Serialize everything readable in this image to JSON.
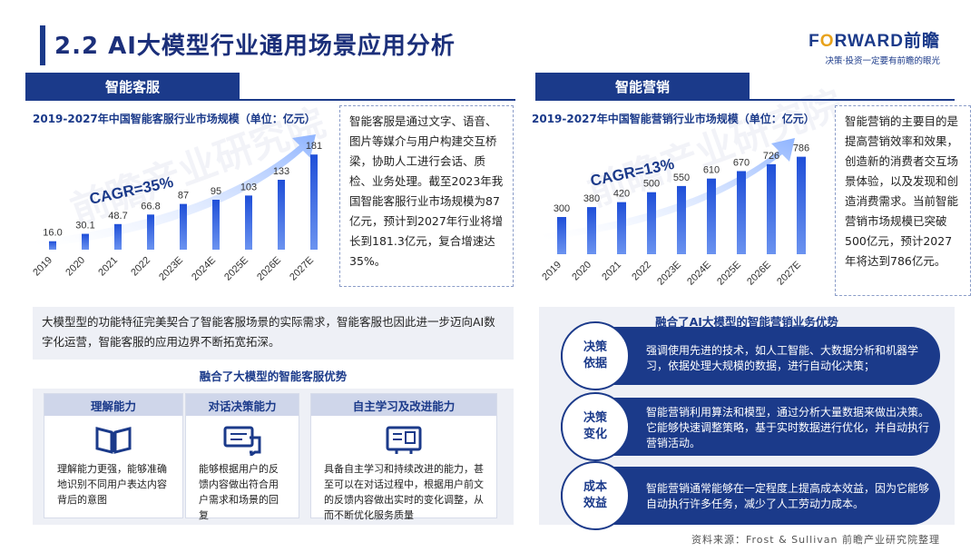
{
  "title": "2.2 AI大模型行业通用场景应用分析",
  "brand": {
    "logo_pre": "F",
    "logo_o": "O",
    "logo_post": "RWARD前瞻",
    "tagline": "决策·投资一定要有前瞻的眼光"
  },
  "left": {
    "section_label": "智能客服",
    "chart_title": "2019-2027年中国智能客服行业市场规模（单位：亿元）",
    "description": "智能客服是通过文字、语音、图片等媒介与用户构建交互桥梁，协助人工进行会话、质检、业务处理。截至2023年我国智能客服行业市场规模为87亿元，预计到2027年行业将增长到181.3亿元，复合增速达35%。",
    "statement": "大模型型的功能特征完美契合了智能客服场景的实际需求，智能客服也因此进一步迈向AI数字化运营，智能客服的应用边界不断拓宽拓深。",
    "advantage_title": "融合了大模型的智能客服优势",
    "advantages": [
      {
        "title": "理解能力",
        "icon": "book-icon",
        "text": "理解能力更强，能够准确地识别不同用户表达内容背后的意图"
      },
      {
        "title": "对话决策能力",
        "icon": "chat-icon",
        "text": "能够根据用户的反馈内容做出符合用户需求和场景的回复"
      },
      {
        "title": "自主学习及改进能力",
        "icon": "learning-icon",
        "text": "具备自主学习和持续改进的能力，甚至可以在对话过程中，根据用户前文的反馈内容做出实时的变化调整，从而不断优化服务质量"
      }
    ]
  },
  "right": {
    "section_label": "智能营销",
    "chart_title": "2019-2027年中国智能营销行业市场规模（单位：亿元）",
    "description": "智能营销的主要目的是提高营销效率和效果，创造新的消费者交互场景体验，以及发现和创造消费需求。当前智能营销市场规模已突破500亿元，预计2027年将达到786亿元。",
    "advantage_title": "融合了AI大模型的智能营销业务优势",
    "rows": [
      {
        "label_line1": "决策",
        "label_line2": "依据",
        "text": "强调使用先进的技术，如人工智能、大数据分析和机器学习，依据处理大规模的数据，进行自动化决策；"
      },
      {
        "label_line1": "决策",
        "label_line2": "变化",
        "text": "智能营销利用算法和模型，通过分析大量数据来做出决策。它能够快速调整策略，基于实时数据进行优化，并自动执行营销活动。"
      },
      {
        "label_line1": "成本",
        "label_line2": "效益",
        "text": "智能营销通常能够在一定程度上提高成本效益，因为它能够自动执行许多任务，减少了人工劳动力成本。"
      }
    ]
  },
  "source": "资料来源：Frost & Sullivan 前瞻产业研究院整理",
  "colors": {
    "primary": "#1b3a8a",
    "bar": "#2c63e0",
    "accent": "#e8a21b"
  },
  "chart_data": [
    {
      "type": "bar",
      "title": "2019-2027年中国智能客服行业市场规模（单位：亿元）",
      "categories": [
        "2019",
        "2020",
        "2021",
        "2022",
        "2023E",
        "2024E",
        "2025E",
        "2026E",
        "2027E"
      ],
      "values": [
        16.0,
        30.1,
        48.7,
        66.8,
        87,
        95,
        103,
        133,
        181
      ],
      "labels": [
        "16.0",
        "30.1",
        "48.7",
        "66.8",
        "87",
        "95",
        "103",
        "133",
        "181"
      ],
      "annotation": "CAGR=35%",
      "ylim": [
        0,
        190
      ]
    },
    {
      "type": "bar",
      "title": "2019-2027年中国智能营销行业市场规模（单位：亿元）",
      "categories": [
        "2019",
        "2020",
        "2021",
        "2022",
        "2023E",
        "2024E",
        "2025E",
        "2026E",
        "2027E"
      ],
      "values": [
        300,
        380,
        420,
        500,
        550,
        610,
        670,
        726,
        786
      ],
      "labels": [
        "300",
        "380",
        "420",
        "500",
        "550",
        "610",
        "670",
        "726",
        "786"
      ],
      "annotation": "CAGR=13%",
      "ylim": [
        0,
        820
      ]
    }
  ]
}
